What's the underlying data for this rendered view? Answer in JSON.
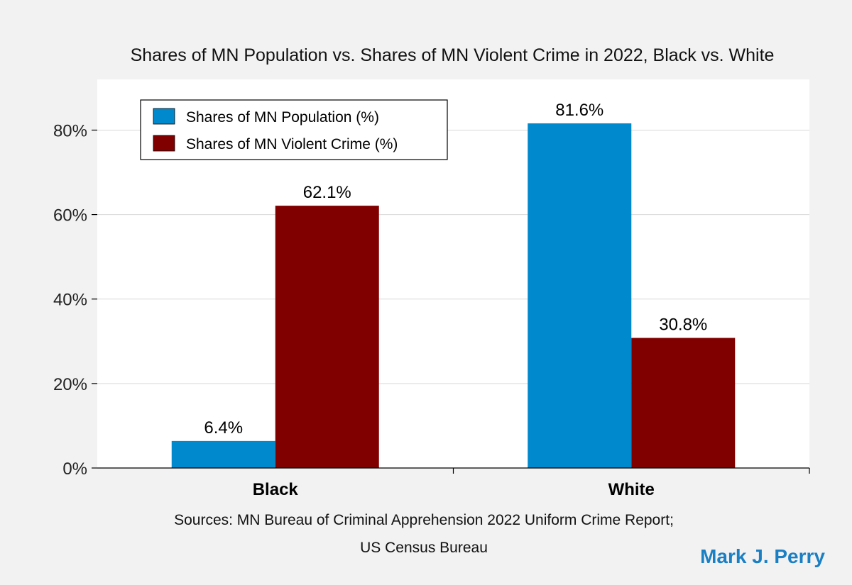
{
  "chart_data": {
    "type": "bar",
    "title": "Shares of MN Population vs. Shares of MN Violent Crime in 2022, Black vs. White",
    "categories": [
      "Black",
      "White"
    ],
    "series": [
      {
        "name": "Shares of MN Population (%)",
        "color": "#0089cc",
        "values": [
          6.4,
          81.6
        ],
        "labels": [
          "6.4%",
          "81.6%"
        ]
      },
      {
        "name": "Shares of MN Violent Crime (%)",
        "color": "#800000",
        "values": [
          62.1,
          30.8
        ],
        "labels": [
          "62.1%",
          "30.8%"
        ]
      }
    ],
    "ylim": [
      0,
      92
    ],
    "yticks": [
      0,
      20,
      40,
      60,
      80
    ],
    "ytick_labels": [
      "0%",
      "20%",
      "40%",
      "60%",
      "80%"
    ],
    "grid": true,
    "legend_position": "top-left",
    "xlabel": "",
    "ylabel": ""
  },
  "source_line1": "Sources: MN Bureau of Criminal Apprehension 2022 Uniform Crime Report;",
  "source_line2": "US Census Bureau",
  "credit": "Mark J. Perry"
}
